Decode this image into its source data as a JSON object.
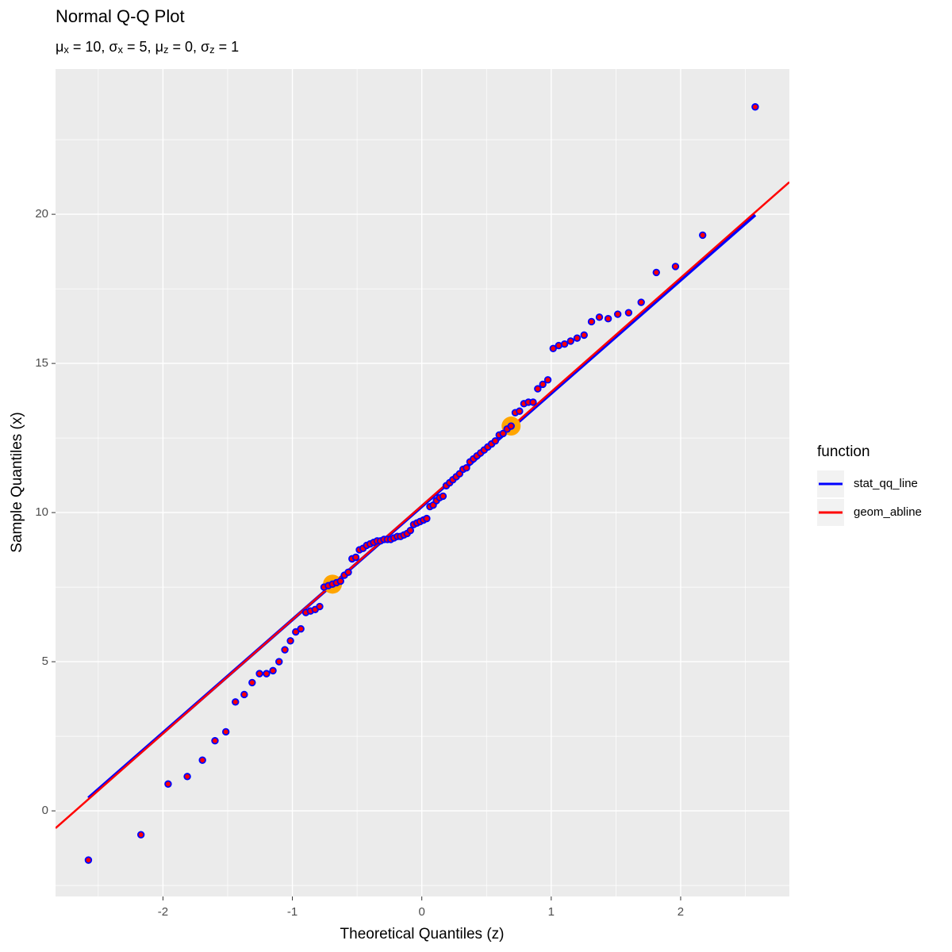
{
  "chart_data": {
    "type": "scatter",
    "title": "Normal Q-Q Plot",
    "subtitle": [
      {
        "symbol": "μ",
        "sub": "x",
        "rest": " = 10, "
      },
      {
        "symbol": "σ",
        "sub": "x",
        "rest": " = 5, "
      },
      {
        "symbol": "μ",
        "sub": "z",
        "rest": " = 0, "
      },
      {
        "symbol": "σ",
        "sub": "z",
        "rest": " = 1"
      }
    ],
    "x_label": "Theoretical Quantiles (z)",
    "y_label": "Sample Quantiles (x)",
    "xlim": [
      -2.83,
      2.84
    ],
    "ylim": [
      -2.87,
      24.87
    ],
    "xticks": [
      -2,
      -1,
      0,
      1,
      2
    ],
    "yticks": [
      0,
      5,
      10,
      15,
      20
    ],
    "grid": true,
    "legend_title": "function",
    "legend_position": "right",
    "points": {
      "fill": "red",
      "stroke": "blue",
      "x": [
        -2.576,
        -2.17,
        -1.96,
        -1.812,
        -1.695,
        -1.598,
        -1.514,
        -1.44,
        -1.372,
        -1.311,
        -1.254,
        -1.2,
        -1.15,
        -1.103,
        -1.058,
        -1.015,
        -0.974,
        -0.935,
        -0.896,
        -0.86,
        -0.824,
        -0.789,
        -0.755,
        -0.722,
        -0.69,
        -0.659,
        -0.628,
        -0.598,
        -0.568,
        -0.539,
        -0.51,
        -0.482,
        -0.454,
        -0.426,
        -0.399,
        -0.372,
        -0.345,
        -0.319,
        -0.292,
        -0.266,
        -0.24,
        -0.215,
        -0.189,
        -0.164,
        -0.138,
        -0.113,
        -0.088,
        -0.063,
        -0.038,
        -0.013,
        0.013,
        0.038,
        0.063,
        0.088,
        0.113,
        0.138,
        0.164,
        0.189,
        0.215,
        0.24,
        0.266,
        0.292,
        0.319,
        0.345,
        0.372,
        0.399,
        0.426,
        0.454,
        0.482,
        0.51,
        0.539,
        0.568,
        0.598,
        0.628,
        0.659,
        0.69,
        0.722,
        0.755,
        0.789,
        0.824,
        0.86,
        0.896,
        0.935,
        0.974,
        1.015,
        1.058,
        1.103,
        1.15,
        1.2,
        1.254,
        1.311,
        1.372,
        1.44,
        1.514,
        1.598,
        1.695,
        1.812,
        1.96,
        2.17,
        2.576
      ],
      "values": [
        -1.65,
        -0.8,
        0.9,
        1.15,
        1.7,
        2.35,
        2.65,
        3.65,
        3.9,
        4.3,
        4.6,
        4.6,
        4.7,
        5.0,
        5.4,
        5.7,
        6.0,
        6.1,
        6.65,
        6.7,
        6.75,
        6.85,
        7.5,
        7.55,
        7.6,
        7.65,
        7.7,
        7.9,
        8.0,
        8.45,
        8.5,
        8.75,
        8.8,
        8.9,
        8.95,
        9.0,
        9.05,
        9.05,
        9.1,
        9.1,
        9.1,
        9.15,
        9.2,
        9.2,
        9.25,
        9.3,
        9.4,
        9.6,
        9.65,
        9.7,
        9.75,
        9.8,
        10.2,
        10.25,
        10.4,
        10.5,
        10.55,
        10.9,
        11.0,
        11.1,
        11.2,
        11.3,
        11.45,
        11.5,
        11.7,
        11.8,
        11.9,
        12.0,
        12.1,
        12.2,
        12.3,
        12.4,
        12.6,
        12.65,
        12.8,
        12.9,
        13.35,
        13.4,
        13.65,
        13.7,
        13.7,
        14.15,
        14.3,
        14.45,
        15.5,
        15.6,
        15.65,
        15.75,
        15.85,
        15.95,
        16.4,
        16.55,
        16.5,
        16.65,
        16.7,
        17.05,
        18.05,
        18.25,
        19.3,
        23.6
      ]
    },
    "highlights": {
      "color": "orange",
      "x": [
        -0.69,
        0.69
      ],
      "values": [
        7.6,
        12.9
      ]
    },
    "series": [
      {
        "name": "stat_qq_line",
        "color": "blue",
        "x": [
          -2.576,
          2.576
        ],
        "values": [
          0.43,
          19.98
        ]
      },
      {
        "name": "geom_abline",
        "color": "red",
        "intercept": 10.23,
        "slope": 3.82
      }
    ]
  }
}
